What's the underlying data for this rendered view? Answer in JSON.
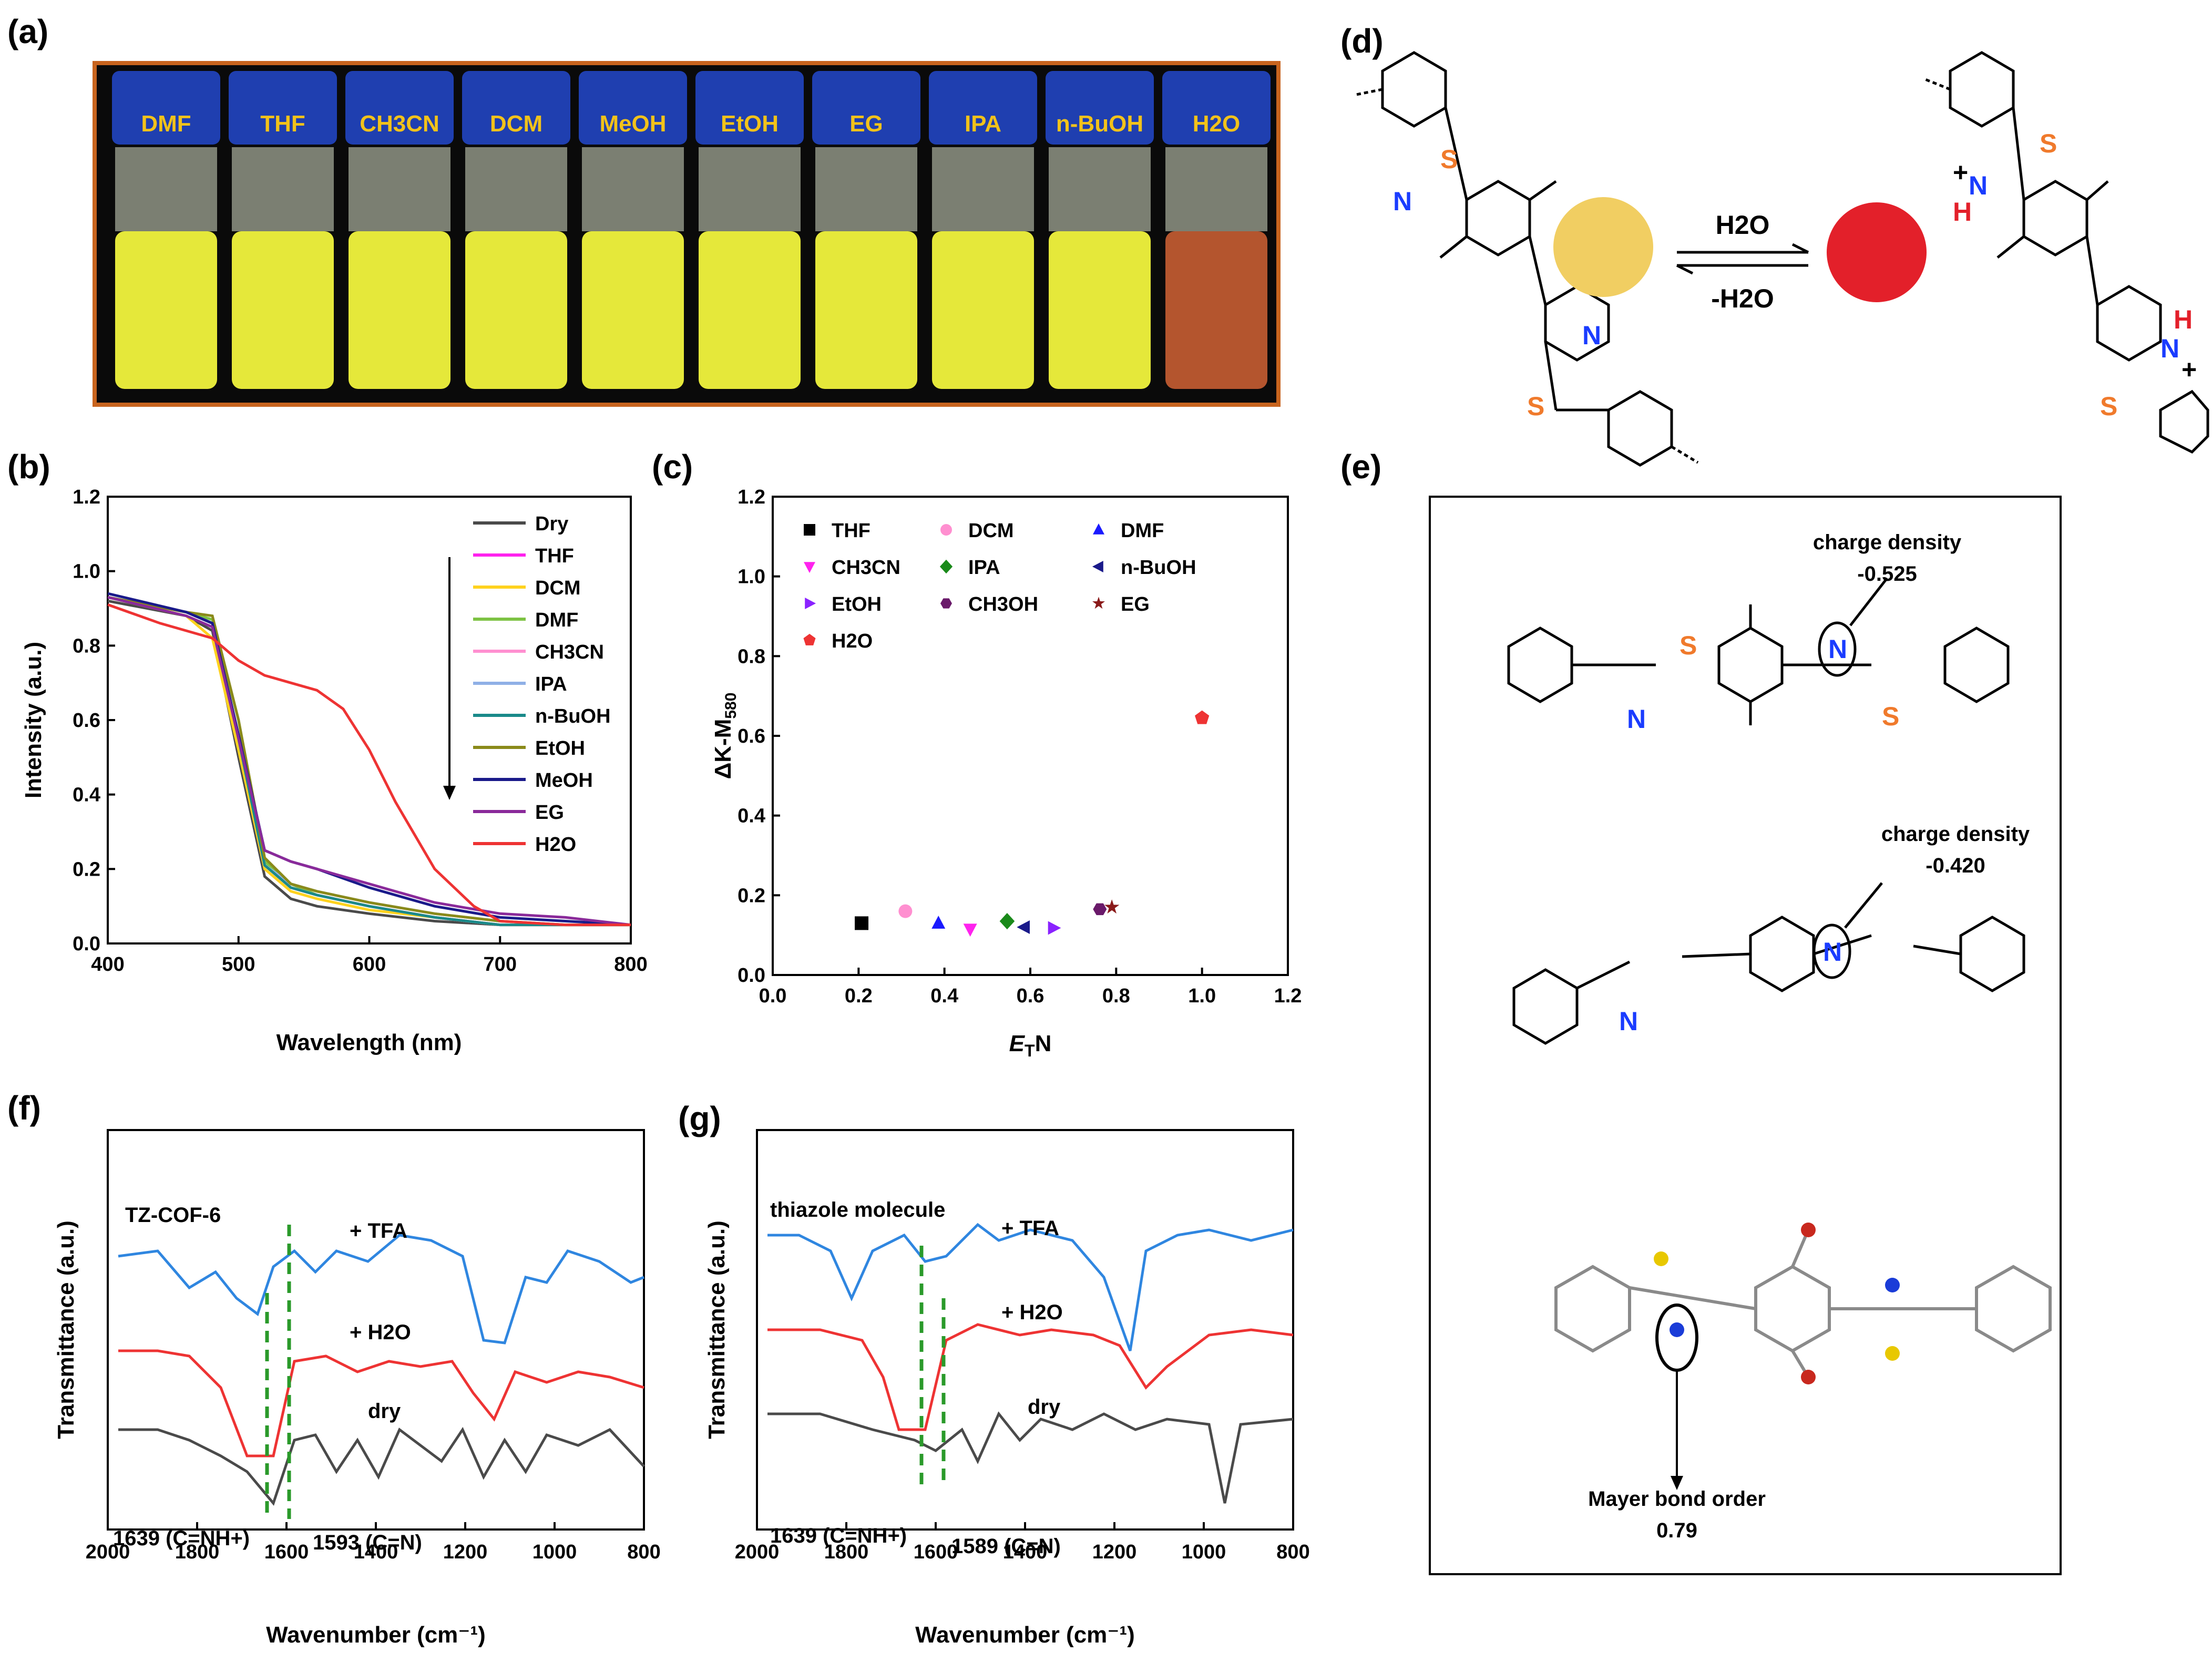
{
  "panels": {
    "a": "(a)",
    "b": "(b)",
    "c": "(c)",
    "d": "(d)",
    "e": "(e)",
    "f": "(f)",
    "g": "(g)"
  },
  "vials": [
    "DMF",
    "THF",
    "CH3CN",
    "DCM",
    "MeOH",
    "EtOH",
    "EG",
    "IPA",
    "n-BuOH",
    "H2O"
  ],
  "colors": {
    "vial_yellow": "#e5e83a",
    "vial_water": "#b4552e",
    "cap_blue": "#1f3fb0",
    "frame": "#c8641e",
    "dot_yellow": "#f1ce62",
    "dot_red": "#e3202a"
  },
  "d": {
    "forward": "H2O",
    "reverse": "-H2O",
    "atoms": {
      "S": "S",
      "N": "N",
      "H": "H",
      "plus": "+"
    }
  },
  "e": {
    "cd1_label": "charge  density",
    "cd1_value": "-0.525",
    "cd2_label": "charge  density",
    "cd2_value": "-0.420",
    "mayer_label": "Mayer bond order",
    "mayer_value": "0.79"
  },
  "chart_data": [
    {
      "id": "b",
      "type": "line",
      "xlabel": "Wavelength (nm)",
      "ylabel": "Intensity (a.u.)",
      "xlim": [
        400,
        800
      ],
      "ylim": [
        0,
        1.2
      ],
      "xticks": [
        400,
        500,
        600,
        700,
        800
      ],
      "yticks": [
        "0.0",
        "0.2",
        "0.4",
        "0.6",
        "0.8",
        "1.0",
        "1.2"
      ],
      "series": [
        {
          "name": "Dry",
          "color": "#4a4a4a",
          "x": [
            400,
            460,
            480,
            500,
            520,
            540,
            560,
            600,
            650,
            700,
            750,
            800
          ],
          "y": [
            0.92,
            0.88,
            0.84,
            0.5,
            0.18,
            0.12,
            0.1,
            0.08,
            0.06,
            0.05,
            0.05,
            0.05
          ]
        },
        {
          "name": "THF",
          "color": "#ff22ee",
          "x": [
            400,
            460,
            480,
            500,
            520,
            540,
            560,
            600,
            650,
            700,
            750,
            800
          ],
          "y": [
            0.93,
            0.89,
            0.86,
            0.55,
            0.21,
            0.15,
            0.13,
            0.1,
            0.07,
            0.05,
            0.05,
            0.05
          ]
        },
        {
          "name": "DCM",
          "color": "#ffd21e",
          "x": [
            400,
            460,
            480,
            500,
            520,
            540,
            560,
            600,
            650,
            700,
            750,
            800
          ],
          "y": [
            0.93,
            0.88,
            0.82,
            0.52,
            0.2,
            0.14,
            0.12,
            0.09,
            0.07,
            0.05,
            0.05,
            0.05
          ]
        },
        {
          "name": "DMF",
          "color": "#7dc243",
          "x": [
            400,
            460,
            480,
            500,
            520,
            540,
            560,
            600,
            650,
            700,
            750,
            800
          ],
          "y": [
            0.93,
            0.89,
            0.87,
            0.6,
            0.22,
            0.16,
            0.13,
            0.1,
            0.07,
            0.05,
            0.05,
            0.05
          ]
        },
        {
          "name": "CH3CN",
          "color": "#ff8fd0",
          "x": [
            400,
            460,
            480,
            500,
            520,
            540,
            560,
            600,
            650,
            700,
            750,
            800
          ],
          "y": [
            0.93,
            0.89,
            0.86,
            0.56,
            0.21,
            0.15,
            0.13,
            0.1,
            0.07,
            0.05,
            0.05,
            0.05
          ]
        },
        {
          "name": "IPA",
          "color": "#8fb0e6",
          "x": [
            400,
            460,
            480,
            500,
            520,
            540,
            560,
            600,
            650,
            700,
            750,
            800
          ],
          "y": [
            0.93,
            0.89,
            0.86,
            0.55,
            0.21,
            0.16,
            0.14,
            0.11,
            0.08,
            0.06,
            0.05,
            0.05
          ]
        },
        {
          "name": "n-BuOH",
          "color": "#1a8a8a",
          "x": [
            400,
            460,
            480,
            500,
            520,
            540,
            560,
            600,
            650,
            700,
            750,
            800
          ],
          "y": [
            0.93,
            0.89,
            0.86,
            0.55,
            0.21,
            0.15,
            0.13,
            0.1,
            0.07,
            0.05,
            0.05,
            0.05
          ]
        },
        {
          "name": "EtOH",
          "color": "#8a8a1a",
          "x": [
            400,
            460,
            480,
            500,
            520,
            540,
            560,
            600,
            650,
            700,
            750,
            800
          ],
          "y": [
            0.93,
            0.89,
            0.88,
            0.6,
            0.23,
            0.16,
            0.14,
            0.11,
            0.08,
            0.06,
            0.05,
            0.05
          ]
        },
        {
          "name": "MeOH",
          "color": "#1a1a8a",
          "x": [
            400,
            460,
            480,
            500,
            520,
            540,
            560,
            600,
            650,
            700,
            750,
            800
          ],
          "y": [
            0.94,
            0.89,
            0.86,
            0.56,
            0.25,
            0.22,
            0.2,
            0.15,
            0.1,
            0.07,
            0.06,
            0.05
          ]
        },
        {
          "name": "EG",
          "color": "#8a2a9a",
          "x": [
            400,
            460,
            480,
            500,
            520,
            540,
            560,
            600,
            650,
            700,
            750,
            800
          ],
          "y": [
            0.93,
            0.88,
            0.85,
            0.55,
            0.25,
            0.22,
            0.2,
            0.16,
            0.11,
            0.08,
            0.07,
            0.05
          ]
        },
        {
          "name": "H2O",
          "color": "#ee3333",
          "x": [
            400,
            440,
            480,
            500,
            520,
            540,
            560,
            580,
            600,
            620,
            650,
            680,
            700,
            750,
            800
          ],
          "y": [
            0.91,
            0.86,
            0.82,
            0.76,
            0.72,
            0.7,
            0.68,
            0.63,
            0.52,
            0.38,
            0.2,
            0.1,
            0.06,
            0.05,
            0.05
          ]
        }
      ]
    },
    {
      "id": "c",
      "type": "scatter",
      "xlabel": "ETN",
      "ylabel": "ΔK-M580",
      "xlim": [
        0,
        1.2
      ],
      "ylim": [
        0,
        1.2
      ],
      "xticks": [
        "0.0",
        "0.2",
        "0.4",
        "0.6",
        "0.8",
        "1.0",
        "1.2"
      ],
      "yticks": [
        "0.0",
        "0.2",
        "0.4",
        "0.6",
        "0.8",
        "1.0",
        "1.2"
      ],
      "points": [
        {
          "name": "THF",
          "x": 0.207,
          "y": 0.13,
          "color": "#000000",
          "shape": "square"
        },
        {
          "name": "DCM",
          "x": 0.309,
          "y": 0.16,
          "color": "#ff8fd0",
          "shape": "circle"
        },
        {
          "name": "DMF",
          "x": 0.386,
          "y": 0.13,
          "color": "#1a1aff",
          "shape": "triangle-up"
        },
        {
          "name": "CH3CN",
          "x": 0.46,
          "y": 0.115,
          "color": "#ff22ee",
          "shape": "triangle-down"
        },
        {
          "name": "IPA",
          "x": 0.546,
          "y": 0.135,
          "color": "#1a8a1a",
          "shape": "diamond"
        },
        {
          "name": "n-BuOH",
          "x": 0.586,
          "y": 0.12,
          "color": "#1a1a8a",
          "shape": "triangle-left"
        },
        {
          "name": "EtOH",
          "x": 0.654,
          "y": 0.118,
          "color": "#8a22ff",
          "shape": "triangle-right"
        },
        {
          "name": "CH3OH",
          "x": 0.762,
          "y": 0.165,
          "color": "#6a1a6a",
          "shape": "hexagon"
        },
        {
          "name": "EG",
          "x": 0.79,
          "y": 0.17,
          "color": "#8a1a1a",
          "shape": "star"
        },
        {
          "name": "H2O",
          "x": 1.0,
          "y": 0.645,
          "color": "#ee3333",
          "shape": "pentagon"
        }
      ]
    },
    {
      "id": "f",
      "type": "line",
      "xlabel": "Wavenumber (cm⁻¹)",
      "ylabel": "Transmittance (a.u.)",
      "xlim": [
        2000,
        800
      ],
      "xticks": [
        2000,
        1800,
        1600,
        1400,
        1200,
        1000,
        800
      ],
      "series": [
        {
          "name": "+ TFA",
          "color": "#2f86e0"
        },
        {
          "name": "+ H2O",
          "color": "#ee3333"
        },
        {
          "name": "dry",
          "color": "#4a4a4a"
        }
      ],
      "inset_label": "TZ-COF-6",
      "marker1": "1639 (C=NH+)",
      "marker2": "1593 (C=N)",
      "marker_x": [
        1639,
        1593
      ]
    },
    {
      "id": "g",
      "type": "line",
      "xlabel": "Wavenumber (cm⁻¹)",
      "ylabel": "Transmittance (a.u.)",
      "xlim": [
        2000,
        800
      ],
      "xticks": [
        2000,
        1800,
        1600,
        1400,
        1200,
        1000,
        800
      ],
      "series": [
        {
          "name": "+ TFA",
          "color": "#2f86e0"
        },
        {
          "name": "+ H2O",
          "color": "#ee3333"
        },
        {
          "name": "dry",
          "color": "#4a4a4a"
        }
      ],
      "inset_label": "thiazole molecule",
      "marker1": "1639 (C=NH+)",
      "marker2": "1589 (C=N)",
      "marker_x": [
        1639,
        1589
      ]
    }
  ]
}
